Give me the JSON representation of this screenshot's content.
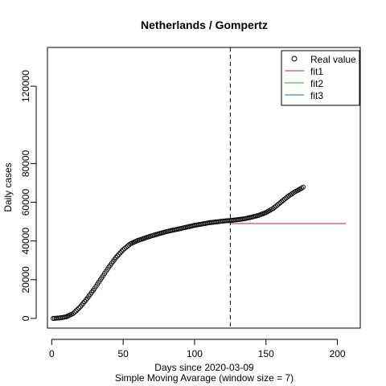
{
  "chart_data": {
    "type": "scatter",
    "title": "Netherlands / Gompertz",
    "xlabel": "Days since 2020-03-09",
    "xlabel_sub": "Simple Moving Avarage (window size = 7)",
    "ylabel": "Daily cases",
    "xlim": [
      -3,
      216
    ],
    "ylim": [
      -5000,
      140000
    ],
    "x_ticks": [
      0,
      50,
      100,
      150,
      200
    ],
    "y_ticks": [
      0,
      20000,
      40000,
      60000,
      80000,
      120000
    ],
    "y_tick_labels": [
      "0",
      "20000",
      "40000",
      "60000",
      "80000",
      "120000"
    ],
    "cutoff_day": 125,
    "real_value_anchors": [
      [
        1,
        0
      ],
      [
        5,
        200
      ],
      [
        10,
        800
      ],
      [
        15,
        2500
      ],
      [
        20,
        6000
      ],
      [
        25,
        10500
      ],
      [
        30,
        15500
      ],
      [
        35,
        21000
      ],
      [
        40,
        26500
      ],
      [
        45,
        31500
      ],
      [
        50,
        35500
      ],
      [
        55,
        38500
      ],
      [
        60,
        40200
      ],
      [
        70,
        42700
      ],
      [
        80,
        44800
      ],
      [
        90,
        46400
      ],
      [
        100,
        48100
      ],
      [
        110,
        49400
      ],
      [
        120,
        50300
      ],
      [
        125,
        50600
      ],
      [
        130,
        51000
      ],
      [
        135,
        51500
      ],
      [
        140,
        52300
      ],
      [
        145,
        53300
      ],
      [
        150,
        54700
      ],
      [
        155,
        56800
      ],
      [
        160,
        59800
      ],
      [
        165,
        62800
      ],
      [
        170,
        65300
      ],
      [
        175,
        67300
      ],
      [
        176,
        67800
      ]
    ],
    "real_value_last_day": 176,
    "fit1": {
      "plateau": 49000,
      "x_start": 125,
      "x_end": 206
    },
    "legend": {
      "position": "top-right",
      "entries": [
        {
          "label": "Real value",
          "type": "point",
          "color": "#000000"
        },
        {
          "label": "fit1",
          "type": "line",
          "color": "#C2185B"
        },
        {
          "label": "fit2",
          "type": "line",
          "color": "#22B022"
        },
        {
          "label": "fit3",
          "type": "line",
          "color": "#1E64C8"
        }
      ]
    }
  }
}
